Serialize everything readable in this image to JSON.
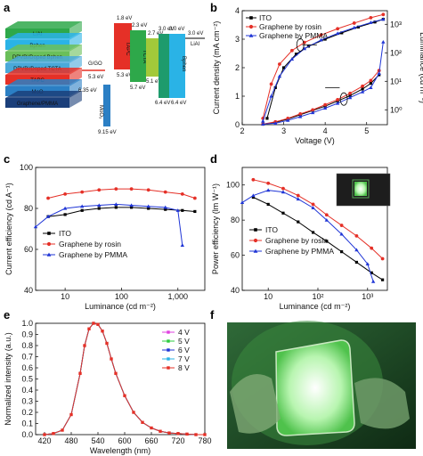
{
  "panels": {
    "a": {
      "letter": "a",
      "layers": [
        "LiAl",
        "Bphen",
        "DPVBi/Doped Bphen",
        "DPVBi/Doped TCTA",
        "TAPC",
        "MoO",
        "Graphene/PMMA"
      ],
      "energy_levels": [
        {
          "label": "G/GO",
          "text": "5.3 eV"
        },
        {
          "label": "",
          "text": "6.35 eV"
        },
        {
          "label": "MoO₃",
          "text": "9.15 eV"
        },
        {
          "label": "TAPC",
          "top": "1.8 eV",
          "bottom": "5.3 eV"
        },
        {
          "label": "TCTA",
          "top": "2.3 eV",
          "bottom": "5.7 eV"
        },
        {
          "label": "Ir(ppy)₃:TCTA",
          "top": "2.7 eV",
          "bottom": "5.1 eV"
        },
        {
          "label": "Ir(ppy)₃:Bphen",
          "top": "3.0 eV",
          "bottom": "6.4 eV"
        },
        {
          "label": "Bphen",
          "top": "3.0 eV",
          "bottom": "6.4 eV"
        },
        {
          "label": "LiAl",
          "top": "3.0 eV"
        }
      ],
      "colors": {
        "red": "#e53027",
        "green": "#2ea84a",
        "blue": "#2b7fc4",
        "cyan": "#2ab3e6",
        "navy": "#1b3f7a"
      }
    },
    "b": {
      "letter": "b"
    },
    "c": {
      "letter": "c"
    },
    "d": {
      "letter": "d"
    },
    "e": {
      "letter": "e"
    },
    "f": {
      "letter": "f"
    }
  },
  "chart_data": [
    {
      "panel": "b",
      "type": "line",
      "xlabel": "Voltage (V)",
      "ylabel": "Current density (mA cm⁻²)",
      "ylabel_right": "Luminance (cd m⁻²)",
      "xlim": [
        2,
        5.5
      ],
      "ylim": [
        0,
        4
      ],
      "ylim_right_log": [
        0.3,
        3000
      ],
      "xticks": [
        "2",
        "3",
        "4",
        "5"
      ],
      "yticks": [
        "0",
        "1",
        "2",
        "3",
        "4"
      ],
      "yticks_right": [
        "10⁰",
        "10¹",
        "10²",
        "10³"
      ],
      "legend": [
        "ITO",
        "Graphene by rosin",
        "Graphene by PMMA"
      ],
      "series": [
        {
          "name": "ITO",
          "axis": "left",
          "color": "#000000",
          "marker": "square",
          "x": [
            2.5,
            2.8,
            3.1,
            3.4,
            3.7,
            4.0,
            4.3,
            4.6,
            4.9,
            5.1,
            5.3
          ],
          "y": [
            0.02,
            0.08,
            0.2,
            0.35,
            0.5,
            0.65,
            0.83,
            1.02,
            1.25,
            1.45,
            1.75
          ]
        },
        {
          "name": "Graphene by rosin",
          "axis": "left",
          "color": "#e53027",
          "marker": "circle",
          "x": [
            2.5,
            2.8,
            3.1,
            3.4,
            3.7,
            4.0,
            4.3,
            4.6,
            4.9,
            5.1,
            5.3
          ],
          "y": [
            0.02,
            0.1,
            0.22,
            0.38,
            0.52,
            0.7,
            0.88,
            1.1,
            1.35,
            1.55,
            1.9
          ]
        },
        {
          "name": "Graphene by PMMA",
          "axis": "left",
          "color": "#1f35d6",
          "marker": "triangle",
          "x": [
            2.5,
            2.8,
            3.1,
            3.4,
            3.7,
            4.0,
            4.3,
            4.6,
            4.9,
            5.1,
            5.3,
            5.4
          ],
          "y": [
            0.02,
            0.05,
            0.15,
            0.28,
            0.42,
            0.58,
            0.75,
            0.95,
            1.15,
            1.3,
            1.8,
            2.9
          ]
        },
        {
          "name": "ITO",
          "axis": "right",
          "color": "#000000",
          "marker": "square",
          "x": [
            2.6,
            2.8,
            3.0,
            3.3,
            3.6,
            4.0,
            4.4,
            4.8,
            5.2,
            5.4
          ],
          "y": [
            0.5,
            6,
            30,
            90,
            170,
            300,
            500,
            800,
            1200,
            1500
          ]
        },
        {
          "name": "Graphene by rosin",
          "axis": "right",
          "color": "#e53027",
          "marker": "circle",
          "x": [
            2.5,
            2.7,
            2.9,
            3.2,
            3.5,
            3.9,
            4.3,
            4.7,
            5.1,
            5.4
          ],
          "y": [
            0.5,
            8,
            40,
            120,
            230,
            420,
            700,
            1100,
            1700,
            2200
          ]
        },
        {
          "name": "Graphene by PMMA",
          "axis": "right",
          "color": "#1f35d6",
          "marker": "triangle",
          "x": [
            2.5,
            2.7,
            2.9,
            3.2,
            3.5,
            3.9,
            4.3,
            4.7,
            5.1,
            5.4
          ],
          "y": [
            0.4,
            3,
            15,
            60,
            140,
            280,
            480,
            760,
            1150,
            1500
          ]
        }
      ]
    },
    {
      "panel": "c",
      "type": "line",
      "xlabel": "Luminance (cd m⁻²)",
      "ylabel": "Current efficiency (cd A⁻¹)",
      "xscale": "log",
      "xlim": [
        3,
        3000
      ],
      "ylim": [
        40,
        100
      ],
      "xticks": [
        "10",
        "100",
        "1,000"
      ],
      "yticks": [
        "40",
        "60",
        "80",
        "100"
      ],
      "legend": [
        "ITO",
        "Graphene by rosin",
        "Graphene by PMMA"
      ],
      "series": [
        {
          "name": "ITO",
          "color": "#000000",
          "marker": "square",
          "x": [
            5,
            10,
            20,
            40,
            80,
            150,
            300,
            600,
            1200,
            2000
          ],
          "y": [
            76,
            77,
            79,
            80,
            80.5,
            80.5,
            80,
            79.5,
            79,
            78.5
          ]
        },
        {
          "name": "Graphene by rosin",
          "color": "#e53027",
          "marker": "circle",
          "x": [
            5,
            10,
            20,
            40,
            80,
            150,
            300,
            600,
            1200,
            2000
          ],
          "y": [
            85,
            87,
            88,
            89,
            89.5,
            89.5,
            89,
            88,
            87,
            85
          ]
        },
        {
          "name": "Graphene by PMMA",
          "color": "#1f35d6",
          "marker": "triangle",
          "x": [
            3,
            5,
            10,
            20,
            40,
            80,
            150,
            300,
            600,
            1000,
            1200
          ],
          "y": [
            71,
            76,
            80,
            81,
            81.5,
            82,
            81.5,
            81,
            80.5,
            79,
            62
          ]
        }
      ]
    },
    {
      "panel": "d",
      "type": "line",
      "xlabel": "Luminance (cd m⁻²)",
      "ylabel": "Power efficiency (lm W⁻¹)",
      "xscale": "log",
      "xlim": [
        3,
        2500
      ],
      "ylim": [
        40,
        110
      ],
      "xticks": [
        "10",
        "10²",
        "10³"
      ],
      "yticks": [
        "40",
        "60",
        "80",
        "100"
      ],
      "legend": [
        "ITO",
        "Graphene by rosin",
        "Graphene by PMMA"
      ],
      "series": [
        {
          "name": "ITO",
          "color": "#000000",
          "marker": "square",
          "x": [
            5,
            10,
            20,
            40,
            80,
            150,
            300,
            600,
            1200,
            2000
          ],
          "y": [
            93,
            89,
            84,
            79,
            73,
            68,
            62,
            56,
            50,
            46
          ]
        },
        {
          "name": "Graphene by rosin",
          "color": "#e53027",
          "marker": "circle",
          "x": [
            5,
            10,
            20,
            40,
            80,
            150,
            300,
            600,
            1200,
            2000
          ],
          "y": [
            103,
            101,
            98,
            94,
            89,
            83,
            77,
            71,
            64,
            58
          ]
        },
        {
          "name": "Graphene by PMMA",
          "color": "#1f35d6",
          "marker": "triangle",
          "x": [
            3,
            5,
            10,
            20,
            40,
            80,
            150,
            300,
            600,
            1000,
            1300
          ],
          "y": [
            90,
            94,
            97,
            96,
            92,
            87,
            80,
            72,
            63,
            55,
            45
          ]
        }
      ]
    },
    {
      "panel": "e",
      "type": "line",
      "xlabel": "Wavelength (nm)",
      "ylabel": "Normalized intensity (a.u.)",
      "xlim": [
        400,
        780
      ],
      "ylim": [
        0,
        1.0
      ],
      "xticks": [
        "420",
        "480",
        "540",
        "600",
        "660",
        "720",
        "780"
      ],
      "yticks": [
        "0.0",
        "0.1",
        "0.2",
        "0.3",
        "0.4",
        "0.5",
        "0.6",
        "0.7",
        "0.8",
        "0.9",
        "1.0"
      ],
      "legend": [
        "4 V",
        "5 V",
        "6 V",
        "7 V",
        "8 V"
      ],
      "series": [
        {
          "name": "4 V",
          "color": "#e040e0"
        },
        {
          "name": "5 V",
          "color": "#2ecc40"
        },
        {
          "name": "6 V",
          "color": "#1f35d6"
        },
        {
          "name": "7 V",
          "color": "#2ab3e6"
        },
        {
          "name": "8 V",
          "color": "#e53027"
        }
      ],
      "x": [
        420,
        440,
        460,
        480,
        500,
        510,
        520,
        530,
        540,
        550,
        560,
        570,
        580,
        600,
        620,
        640,
        660,
        680,
        700,
        720,
        740,
        760,
        780
      ],
      "y": [
        0.0,
        0.01,
        0.04,
        0.18,
        0.55,
        0.8,
        0.95,
        1.0,
        0.99,
        0.93,
        0.82,
        0.68,
        0.55,
        0.35,
        0.2,
        0.11,
        0.06,
        0.03,
        0.015,
        0.01,
        0.005,
        0.0,
        0.0
      ]
    }
  ]
}
